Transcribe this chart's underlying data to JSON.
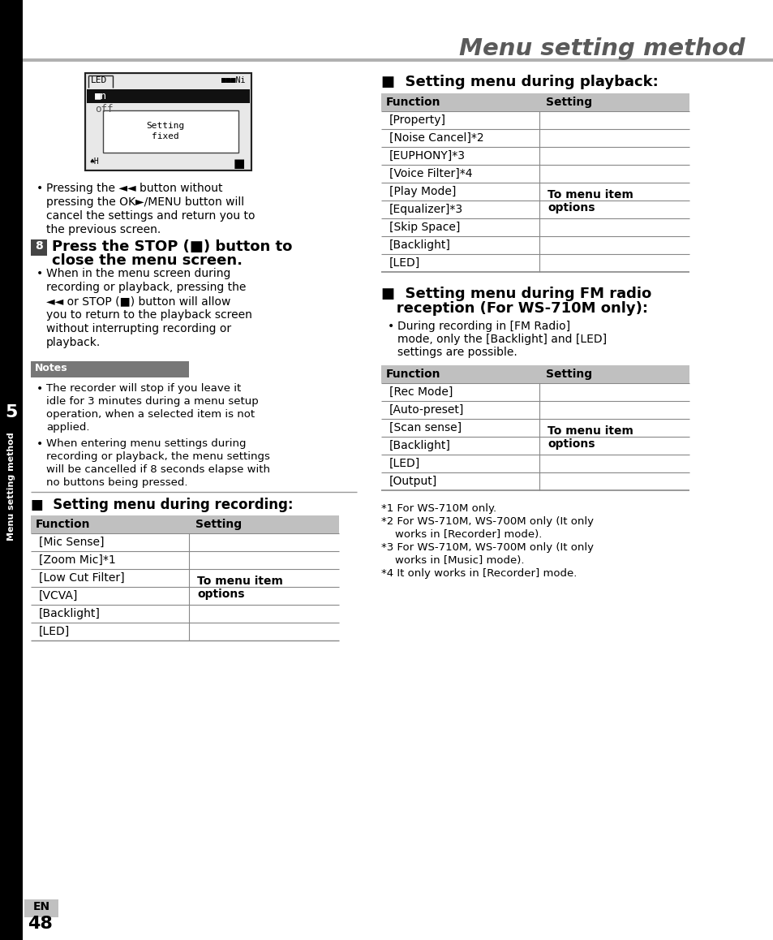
{
  "title": "Menu setting method",
  "title_color": "#5a5a5a",
  "background_color": "#ffffff",
  "page_number": "48",
  "chapter_number": "5",
  "chapter_label": "Menu setting method",
  "rec_section_title": "■  Setting menu during recording:",
  "rec_table_rows": [
    "[Mic Sense]",
    "[Zoom Mic]*1",
    "[Low Cut Filter]",
    "[VCVA]",
    "[Backlight]",
    "[LED]"
  ],
  "play_section_title": "■  Setting menu during playback:",
  "play_table_rows": [
    "[Property]",
    "[Noise Cancel]*2",
    "[EUPHONY]*3",
    "[Voice Filter]*4",
    "[Play Mode]",
    "[Equalizer]*3",
    "[Skip Space]",
    "[Backlight]",
    "[LED]"
  ],
  "fm_section_line1": "■  Setting menu during FM radio",
  "fm_section_line2": "   reception (For WS-710M only):",
  "fm_table_rows": [
    "[Rec Mode]",
    "[Auto-preset]",
    "[Scan sense]",
    "[Backlight]",
    "[LED]",
    "[Output]"
  ],
  "footnote1": "*1 For WS-710M only.",
  "footnote2_a": "*2 For WS-710M, WS-700M only (It only",
  "footnote2_b": "    works in [Recorder] mode).",
  "footnote3_a": "*3 For WS-710M, WS-700M only (It only",
  "footnote3_b": "    works in [Music] mode).",
  "footnote4": "*4 It only works in [Recorder] mode."
}
